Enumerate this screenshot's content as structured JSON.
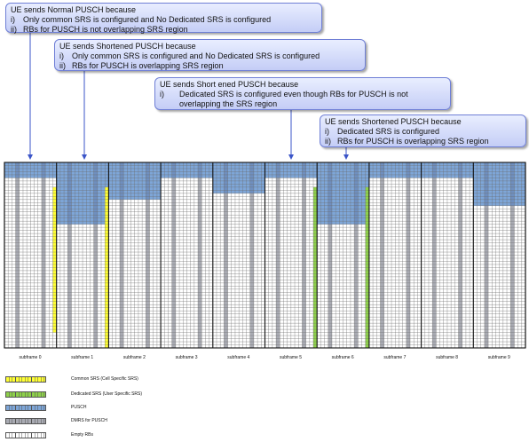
{
  "callouts": [
    {
      "title": "UE sends Normal  PUSCH because",
      "lines": [
        {
          "num": "i)",
          "text": "Only common SRS is configured and No Dedicated SRS is configured"
        },
        {
          "num": "ii)",
          "text": "RBs for PUSCH is not overlapping  SRS region"
        }
      ]
    },
    {
      "title": "UE sends Shortened PUSCH because",
      "lines": [
        {
          "num": "i)",
          "text": "Only common SRS is configured and No Dedicated SRS is configured"
        },
        {
          "num": "ii)",
          "text": "RBs for PUSCH is overlapping  SRS region"
        }
      ]
    },
    {
      "title": "UE sends Short ened PUSCH because",
      "lines": [
        {
          "num": "i)",
          "text": "Dedicated SRS is configured even though RBs for PUSCH is not overlapping the SRS region"
        }
      ]
    },
    {
      "title": "UE sends Shortened  PUSCH because",
      "lines": [
        {
          "num": "i)",
          "text": "Dedicated SRS is configured"
        },
        {
          "num": "ii)",
          "text": "RBs for PUSCH is overlapping  SRS region"
        }
      ]
    }
  ],
  "subframes": [
    "subframe 0",
    "subframe 1",
    "subframe 2",
    "subframe 3",
    "subframe 4",
    "subframe 5",
    "subframe 6",
    "subframe 7",
    "subframe 8",
    "subframe 9"
  ],
  "legend": [
    {
      "label": "Common SRS (Cell Specific SRS)",
      "color": "#ffff33"
    },
    {
      "label": "Dedicated SRS (User Specific SRS)",
      "color": "#8ed14a"
    },
    {
      "label": "PUSCH",
      "color": "#7ea6d8"
    },
    {
      "label": "DMRS for PUSCH",
      "color": "#a9abb3"
    },
    {
      "label": "Empty RBs",
      "color": "#ffffff"
    }
  ],
  "colors": {
    "common_srs": "#ffff33",
    "dedicated_srs": "#8ed14a",
    "pusch": "#7ea6d8",
    "dmrs": "#a9abb3",
    "empty": "#ffffff",
    "arrow": "#3b55c8"
  },
  "grid": {
    "subframe_count": 10,
    "columns_per_subframe": 14,
    "rb_rows": 60,
    "pusch_blocks": [
      {
        "subframe": 0,
        "top_rb": 0,
        "rb_count": 5
      },
      {
        "subframe": 1,
        "top_rb": 0,
        "rb_count": 20
      },
      {
        "subframe": 2,
        "top_rb": 0,
        "rb_count": 12
      },
      {
        "subframe": 3,
        "top_rb": 0,
        "rb_count": 5
      },
      {
        "subframe": 4,
        "top_rb": 0,
        "rb_count": 10
      },
      {
        "subframe": 5,
        "top_rb": 0,
        "rb_count": 5
      },
      {
        "subframe": 6,
        "top_rb": 0,
        "rb_count": 20
      },
      {
        "subframe": 7,
        "top_rb": 0,
        "rb_count": 5
      },
      {
        "subframe": 8,
        "top_rb": 0,
        "rb_count": 5
      },
      {
        "subframe": 9,
        "top_rb": 0,
        "rb_count": 14
      }
    ],
    "srs_columns": [
      {
        "subframe": 0,
        "type": "common",
        "top_rb": 8,
        "rb_count": 47
      },
      {
        "subframe": 1,
        "type": "common",
        "top_rb": 8,
        "rb_count": 52
      },
      {
        "subframe": 5,
        "type": "dedicated",
        "top_rb": 8,
        "rb_count": 52
      },
      {
        "subframe": 6,
        "type": "dedicated",
        "top_rb": 8,
        "rb_count": 52
      }
    ]
  }
}
